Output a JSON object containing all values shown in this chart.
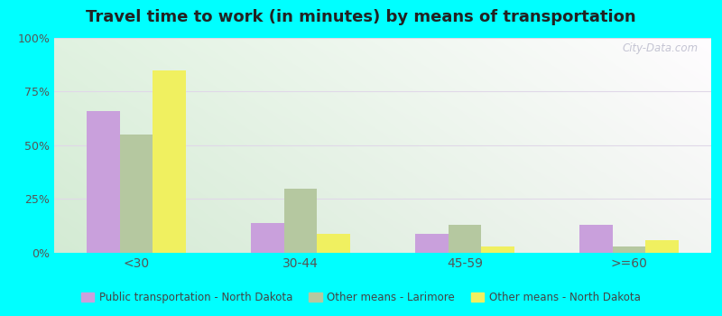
{
  "title": "Travel time to work (in minutes) by means of transportation",
  "categories": [
    "<30",
    "30-44",
    "45-59",
    ">=60"
  ],
  "series": {
    "Public transportation - North Dakota": [
      66,
      14,
      9,
      13
    ],
    "Other means - Larimore": [
      55,
      30,
      13,
      3
    ],
    "Other means - North Dakota": [
      85,
      9,
      3,
      6
    ]
  },
  "colors": {
    "Public transportation - North Dakota": "#c9a0dc",
    "Other means - Larimore": "#b5c8a0",
    "Other means - North Dakota": "#f0f060"
  },
  "bar_width": 0.2,
  "ylim": [
    0,
    100
  ],
  "yticks": [
    0,
    25,
    50,
    75,
    100
  ],
  "ytick_labels": [
    "0%",
    "25%",
    "50%",
    "75%",
    "100%"
  ],
  "outer_background": "#00ffff",
  "grid_color": "#e0d8e8",
  "title_fontsize": 13,
  "watermark": "City-Data.com"
}
